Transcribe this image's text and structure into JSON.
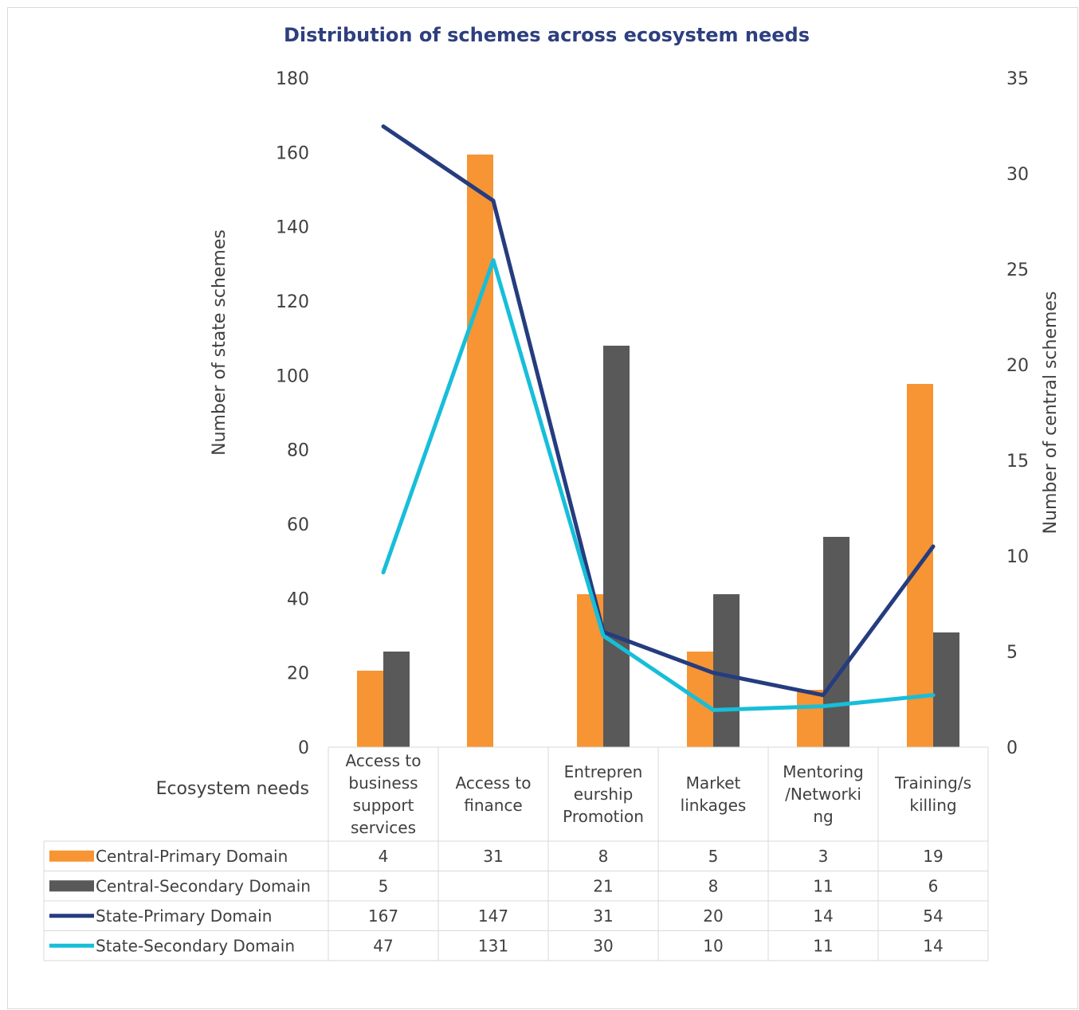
{
  "chart_data": {
    "type": "bar",
    "title": "Distribution of schemes across ecosystem needs",
    "xlabel": "Ecosystem needs",
    "ylabel_left": "Number of state schemes",
    "ylabel_right": "Number of central schemes",
    "ylim_left": [
      0,
      180
    ],
    "ylim_right": [
      0,
      35
    ],
    "yticks_left": [
      "0",
      "20",
      "40",
      "60",
      "80",
      "100",
      "120",
      "140",
      "160",
      "180"
    ],
    "yticks_right": [
      "0",
      "5",
      "10",
      "15",
      "20",
      "25",
      "30",
      "35"
    ],
    "categories": [
      [
        "Access to",
        "business",
        "support",
        "services"
      ],
      [
        "Access to",
        "finance"
      ],
      [
        "Entrepren",
        "eurship",
        "Promotion"
      ],
      [
        "Market",
        "linkages"
      ],
      [
        "Mentoring",
        "/Networki",
        "ng"
      ],
      [
        "Training/s",
        "killing"
      ]
    ],
    "series": [
      {
        "name": "Central-Primary Domain",
        "kind": "bar",
        "axis": "right",
        "color": "#f79433",
        "values": [
          4,
          31,
          8,
          5,
          3,
          19
        ]
      },
      {
        "name": "Central-Secondary Domain",
        "kind": "bar",
        "axis": "right",
        "color": "#595959",
        "values": [
          5,
          null,
          21,
          8,
          11,
          6
        ]
      },
      {
        "name": "State-Primary Domain",
        "kind": "line",
        "axis": "left",
        "color": "#253c7f",
        "values": [
          167,
          147,
          31,
          20,
          14,
          54
        ]
      },
      {
        "name": "State-Secondary Domain",
        "kind": "line",
        "axis": "left",
        "color": "#17bed9",
        "values": [
          47,
          131,
          30,
          10,
          11,
          14
        ]
      }
    ],
    "data_table": true,
    "grid": false
  }
}
